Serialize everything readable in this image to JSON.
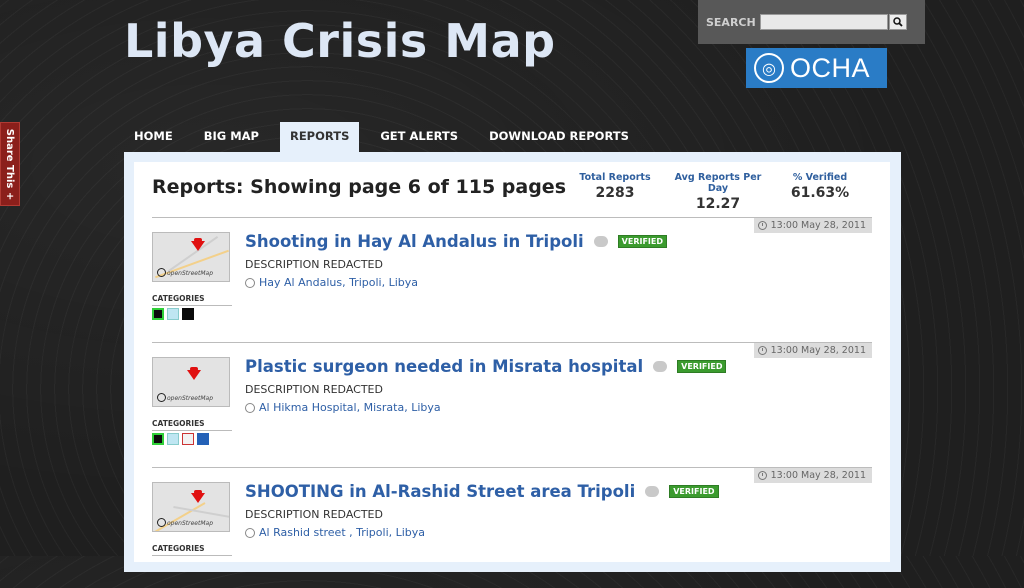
{
  "header": {
    "site_title": "Libya Crisis Map",
    "search_label": "SEARCH",
    "search_value": "",
    "logo_text": "OCHA"
  },
  "share": {
    "label": "Share This +"
  },
  "nav": {
    "items": [
      {
        "label": "HOME",
        "active": false
      },
      {
        "label": "BIG MAP",
        "active": false
      },
      {
        "label": "REPORTS",
        "active": true
      },
      {
        "label": "GET ALERTS",
        "active": false
      },
      {
        "label": "DOWNLOAD REPORTS",
        "active": false
      }
    ]
  },
  "page": {
    "heading": "Reports: Showing page 6 of 115 pages",
    "stats": [
      {
        "label": "Total Reports",
        "value": "2283"
      },
      {
        "label": "Avg Reports Per Day",
        "value": "12.27"
      },
      {
        "label": "% Verified",
        "value": "61.63%"
      }
    ]
  },
  "categories_label": "CATEGORIES",
  "reports": [
    {
      "date": "13:00 May 28, 2011",
      "title": "Shooting in Hay Al Andalus in Tripoli",
      "comments": "0",
      "badge": "VERIFIED",
      "description": "DESCRIPTION REDACTED",
      "location": "Hay Al Andalus, Tripoli, Libya",
      "categories": [
        "shield-category-icon",
        "water-category-icon",
        "black-category-icon"
      ]
    },
    {
      "date": "13:00 May 28, 2011",
      "title": "Plastic surgeon needed in Misrata hospital",
      "comments": "0",
      "badge": "VERIFIED",
      "description": "DESCRIPTION REDACTED",
      "location": "Al Hikma Hospital, Misrata, Libya",
      "categories": [
        "shield-category-icon",
        "water-category-icon",
        "medical-category-icon",
        "blue-category-icon"
      ]
    },
    {
      "date": "13:00 May 28, 2011",
      "title": "SHOOTING in Al-Rashid Street area Tripoli",
      "comments": "0",
      "badge": "VERIFIED",
      "description": "DESCRIPTION REDACTED",
      "location": "Al Rashid street , Tripoli, Libya",
      "categories": []
    }
  ],
  "thumb_caption": "openStreetMap",
  "colors": {
    "link_blue": "#2e5fa6",
    "verified_green": "#3b9b2e",
    "ocha_blue": "#2a7cc6",
    "frame_blue": "#e6f0fb"
  }
}
